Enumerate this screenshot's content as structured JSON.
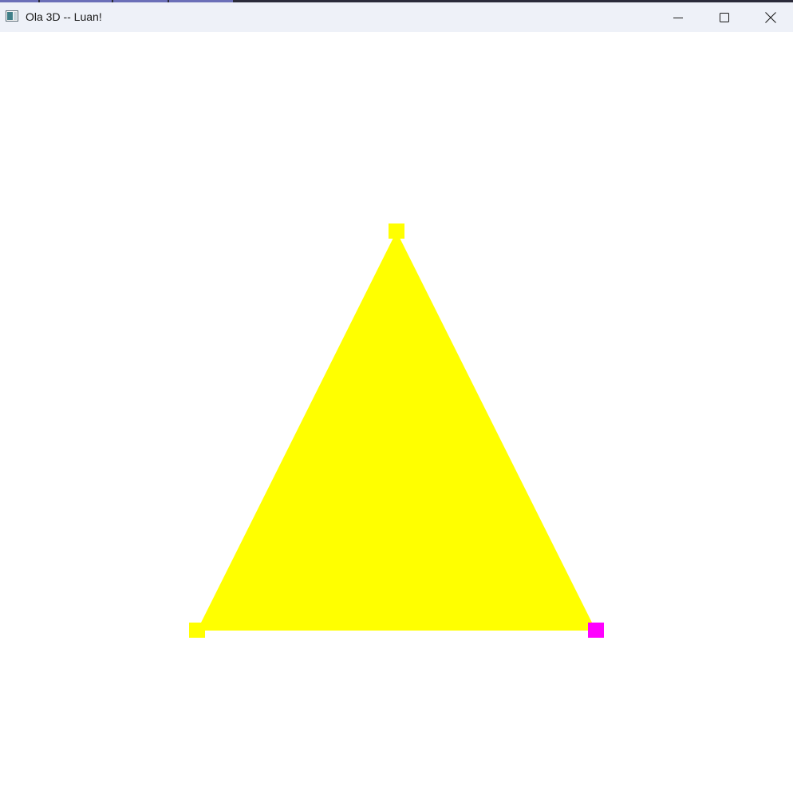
{
  "window": {
    "title": "Ola 3D -- Luan!",
    "controls": {
      "minimize_icon": "minimize-icon",
      "maximize_icon": "maximize-icon",
      "close_icon": "close-icon"
    }
  },
  "scene": {
    "background": "#ffffff",
    "triangle_fill": "#ffff00",
    "vertex_colors": {
      "top": "#ffff00",
      "bottom_left": "#ffff00",
      "bottom_right": "#ff00ff"
    }
  }
}
